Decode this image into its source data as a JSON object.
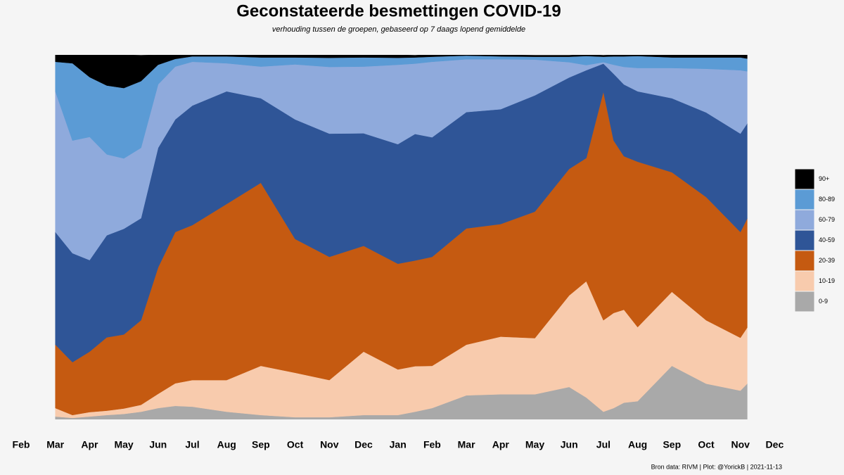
{
  "chart_data": {
    "type": "stacked_area_percent",
    "title": "Geconstateerde besmettingen COVID-19",
    "subtitle": "verhouding tussen de groepen, gebaseerd op 7 daags lopend gemiddelde",
    "caption": "Bron data: RIVM  | Plot: @YorickB |  2021-11-13",
    "x": [
      1,
      1.5,
      2,
      2.5,
      3,
      3.5,
      4,
      4.5,
      5,
      6,
      7,
      8,
      9,
      10,
      11,
      11.5,
      12,
      13,
      14,
      15,
      16,
      16.5,
      17,
      17.3,
      17.6,
      18,
      19,
      20,
      21,
      21.2
    ],
    "xlim": [
      0,
      22
    ],
    "xticks": [
      {
        "value": 0,
        "label": "Feb"
      },
      {
        "value": 1,
        "label": "Mar"
      },
      {
        "value": 2,
        "label": "Apr"
      },
      {
        "value": 3,
        "label": "May"
      },
      {
        "value": 4,
        "label": "Jun"
      },
      {
        "value": 5,
        "label": "Jul"
      },
      {
        "value": 6,
        "label": "Aug"
      },
      {
        "value": 7,
        "label": "Sep"
      },
      {
        "value": 8,
        "label": "Oct"
      },
      {
        "value": 9,
        "label": "Nov"
      },
      {
        "value": 10,
        "label": "Dec"
      },
      {
        "value": 11,
        "label": "Jan"
      },
      {
        "value": 12,
        "label": "Feb"
      },
      {
        "value": 13,
        "label": "Mar"
      },
      {
        "value": 14,
        "label": "Apr"
      },
      {
        "value": 15,
        "label": "May"
      },
      {
        "value": 16,
        "label": "Jun"
      },
      {
        "value": 17,
        "label": "Jul"
      },
      {
        "value": 18,
        "label": "Aug"
      },
      {
        "value": 19,
        "label": "Sep"
      },
      {
        "value": 20,
        "label": "Oct"
      },
      {
        "value": 21,
        "label": "Nov"
      },
      {
        "value": 22,
        "label": "Dec"
      }
    ],
    "ylim": [
      0,
      100
    ],
    "series": [
      {
        "name": "0-9",
        "color": "#a9a9a9",
        "values": [
          0.8,
          0.4,
          0.8,
          1.2,
          1.5,
          2.1,
          3.1,
          3.7,
          3.5,
          2.1,
          1.2,
          0.6,
          0.6,
          1.2,
          1.2,
          2.1,
          3.1,
          6.6,
          6.9,
          6.9,
          8.9,
          6.0,
          2.1,
          3.1,
          4.6,
          5.0,
          14.7,
          9.8,
          7.9,
          9.8
        ]
      },
      {
        "name": "10-19",
        "color": "#f8cbad",
        "values": [
          2.3,
          0.8,
          1.2,
          1.2,
          1.5,
          1.9,
          3.9,
          6.2,
          7.3,
          8.7,
          13.5,
          12.2,
          10.2,
          17.4,
          12.5,
          12.5,
          11.6,
          13.9,
          15.8,
          15.4,
          25.1,
          31.9,
          25.1,
          26.1,
          25.5,
          20.3,
          20.3,
          17.4,
          14.5,
          15.4
        ]
      },
      {
        "name": "20-39",
        "color": "#c55a11",
        "values": [
          17.4,
          14.5,
          16.6,
          20.1,
          20.3,
          23.2,
          34.7,
          41.5,
          42.5,
          48.3,
          50.2,
          36.7,
          33.8,
          29.0,
          29.0,
          29.0,
          29.9,
          31.9,
          30.9,
          34.7,
          34.7,
          33.8,
          62.7,
          47.3,
          42.1,
          45.4,
          32.8,
          33.8,
          29.0,
          29.9
        ]
      },
      {
        "name": "40-59",
        "color": "#2f5597",
        "values": [
          30.9,
          29.9,
          25.1,
          28.0,
          29.0,
          28.0,
          32.8,
          30.9,
          32.8,
          30.9,
          23.2,
          32.8,
          33.8,
          30.9,
          32.8,
          34.7,
          32.8,
          31.9,
          31.5,
          31.9,
          25.1,
          24.1,
          7.7,
          18.3,
          19.7,
          19.3,
          20.3,
          23.2,
          27.0,
          26.1
        ]
      },
      {
        "name": "60-79",
        "color": "#8faadc",
        "values": [
          38.6,
          30.9,
          33.8,
          22.2,
          19.3,
          19.3,
          17.4,
          14.5,
          12.0,
          7.7,
          8.7,
          15.1,
          18.3,
          18.3,
          21.8,
          19.3,
          20.7,
          14.5,
          13.7,
          9.8,
          4.2,
          1.4,
          0.4,
          2.5,
          4.8,
          6.4,
          8.3,
          12.0,
          17.4,
          14.3
        ]
      },
      {
        "name": "80-89",
        "color": "#5b9bd5",
        "values": [
          8.1,
          21.2,
          16.4,
          18.9,
          19.3,
          18.3,
          5.4,
          2.1,
          1.5,
          1.9,
          2.5,
          1.9,
          2.5,
          2.5,
          1.9,
          1.7,
          1.4,
          1.0,
          0.8,
          0.8,
          1.5,
          2.5,
          1.5,
          2.3,
          2.9,
          3.3,
          2.9,
          3.1,
          3.5,
          3.5
        ]
      },
      {
        "name": "90+",
        "color": "#000000",
        "values": [
          1.9,
          2.3,
          6.2,
          8.5,
          9.1,
          7.1,
          2.7,
          1.2,
          0.4,
          0.4,
          0.8,
          0.8,
          0.8,
          0.8,
          0.8,
          0.6,
          0.6,
          0.4,
          0.4,
          0.4,
          0.4,
          0.4,
          0.4,
          0.4,
          0.4,
          0.4,
          0.8,
          0.8,
          0.8,
          1.0
        ]
      }
    ],
    "legend": "right"
  }
}
